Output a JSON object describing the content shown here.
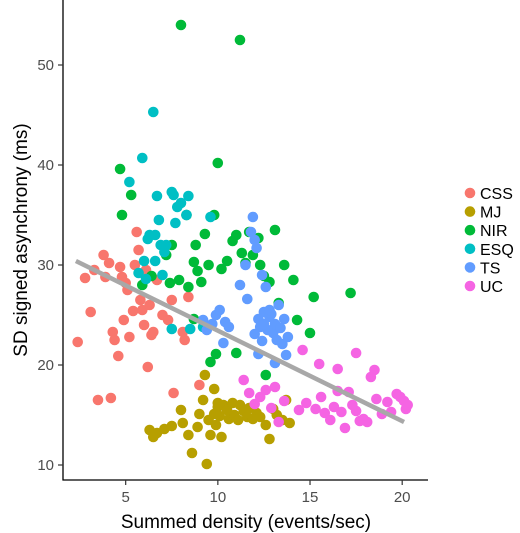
{
  "chart_data": {
    "type": "scatter",
    "xlabel": "Summed density (events/sec)",
    "ylabel": "SD signed asynchrony (ms)",
    "xlim": [
      1.6,
      21.4
    ],
    "ylim": [
      8.5,
      56.5
    ],
    "xticks": [
      5,
      10,
      15,
      20
    ],
    "yticks": [
      10,
      20,
      30,
      40,
      50
    ],
    "grid": false,
    "legend_position": "right",
    "trend_line": {
      "color": "#a8a8a8",
      "x": [
        2.3,
        20.1
      ],
      "y": [
        30.4,
        14.3
      ]
    },
    "series": [
      {
        "name": "CSS",
        "color": "#f8766d",
        "points": [
          [
            2.4,
            22.3
          ],
          [
            2.8,
            28.7
          ],
          [
            3.1,
            25.3
          ],
          [
            3.3,
            29.5
          ],
          [
            3.5,
            16.5
          ],
          [
            3.8,
            31.0
          ],
          [
            3.9,
            28.8
          ],
          [
            4.1,
            30.2
          ],
          [
            4.2,
            16.7
          ],
          [
            4.3,
            23.3
          ],
          [
            4.4,
            22.5
          ],
          [
            4.6,
            20.9
          ],
          [
            4.7,
            29.8
          ],
          [
            4.8,
            28.8
          ],
          [
            4.9,
            24.5
          ],
          [
            5.0,
            28.2
          ],
          [
            5.1,
            27.5
          ],
          [
            5.2,
            22.8
          ],
          [
            5.4,
            25.4
          ],
          [
            5.5,
            30.0
          ],
          [
            5.6,
            33.3
          ],
          [
            5.7,
            31.5
          ],
          [
            5.8,
            26.5
          ],
          [
            5.9,
            25.5
          ],
          [
            6.0,
            24.0
          ],
          [
            6.1,
            29.5
          ],
          [
            6.2,
            19.8
          ],
          [
            6.3,
            26.0
          ],
          [
            6.4,
            23.0
          ],
          [
            6.5,
            23.3
          ],
          [
            6.7,
            28.5
          ],
          [
            7.0,
            25.0
          ],
          [
            7.3,
            24.5
          ],
          [
            7.5,
            26.5
          ],
          [
            8.1,
            23.3
          ],
          [
            8.2,
            22.5
          ],
          [
            8.4,
            26.8
          ],
          [
            9.0,
            18.0
          ],
          [
            7.6,
            17.2
          ]
        ]
      },
      {
        "name": "MJ",
        "color": "#b79f00",
        "points": [
          [
            6.3,
            13.5
          ],
          [
            6.5,
            12.8
          ],
          [
            6.7,
            13.2
          ],
          [
            7.1,
            13.6
          ],
          [
            7.5,
            13.9
          ],
          [
            8.1,
            14.2
          ],
          [
            8.4,
            13.0
          ],
          [
            8.6,
            11.2
          ],
          [
            8.9,
            13.8
          ],
          [
            9.2,
            16.5
          ],
          [
            9.4,
            10.1
          ],
          [
            9.5,
            14.5
          ],
          [
            9.6,
            13.0
          ],
          [
            9.8,
            15.1
          ],
          [
            9.9,
            14.0
          ],
          [
            10.0,
            15.8
          ],
          [
            10.1,
            14.9
          ],
          [
            10.3,
            16.0
          ],
          [
            10.5,
            15.5
          ],
          [
            10.6,
            14.6
          ],
          [
            10.8,
            16.2
          ],
          [
            10.9,
            15.0
          ],
          [
            11.1,
            14.5
          ],
          [
            11.2,
            16.0
          ],
          [
            11.4,
            15.4
          ],
          [
            11.6,
            14.8
          ],
          [
            11.7,
            15.7
          ],
          [
            11.9,
            14.6
          ],
          [
            12.1,
            15.2
          ],
          [
            12.3,
            14.8
          ],
          [
            12.6,
            14.0
          ],
          [
            12.8,
            12.6
          ],
          [
            13.0,
            15.6
          ],
          [
            13.2,
            15.0
          ],
          [
            13.5,
            14.5
          ],
          [
            13.7,
            16.5
          ],
          [
            13.9,
            14.2
          ],
          [
            10.2,
            12.8
          ],
          [
            9.0,
            15.1
          ],
          [
            8.0,
            15.5
          ],
          [
            9.8,
            17.6
          ],
          [
            9.3,
            19.0
          ],
          [
            10.0,
            16.2
          ]
        ]
      },
      {
        "name": "NIR",
        "color": "#00ba38",
        "points": [
          [
            4.7,
            39.6
          ],
          [
            4.8,
            35.0
          ],
          [
            5.3,
            37.0
          ],
          [
            5.9,
            28.0
          ],
          [
            6.4,
            28.9
          ],
          [
            7.2,
            31.0
          ],
          [
            7.4,
            28.2
          ],
          [
            7.5,
            32.0
          ],
          [
            7.9,
            28.5
          ],
          [
            8.0,
            54.0
          ],
          [
            8.3,
            35.0
          ],
          [
            8.7,
            30.3
          ],
          [
            8.8,
            32.0
          ],
          [
            9.1,
            28.3
          ],
          [
            9.3,
            33.1
          ],
          [
            9.5,
            30.0
          ],
          [
            9.6,
            20.3
          ],
          [
            9.9,
            21.1
          ],
          [
            10.0,
            40.2
          ],
          [
            10.2,
            29.6
          ],
          [
            10.5,
            30.4
          ],
          [
            10.8,
            32.4
          ],
          [
            11.0,
            33.0
          ],
          [
            11.2,
            52.5
          ],
          [
            11.3,
            31.2
          ],
          [
            11.5,
            30.2
          ],
          [
            11.7,
            33.3
          ],
          [
            11.9,
            31.0
          ],
          [
            12.2,
            32.7
          ],
          [
            12.3,
            30.0
          ],
          [
            12.5,
            28.9
          ],
          [
            12.8,
            28.3
          ],
          [
            13.1,
            33.5
          ],
          [
            13.3,
            26.2
          ],
          [
            13.6,
            30.0
          ],
          [
            14.1,
            28.5
          ],
          [
            14.3,
            24.5
          ],
          [
            15.0,
            23.2
          ],
          [
            15.2,
            26.8
          ],
          [
            17.2,
            27.2
          ],
          [
            11.0,
            21.2
          ],
          [
            12.6,
            19.0
          ],
          [
            8.7,
            24.6
          ],
          [
            8.4,
            27.8
          ],
          [
            9.8,
            35.0
          ],
          [
            8.9,
            29.4
          ]
        ]
      },
      {
        "name": "ESQ",
        "color": "#00bfc4",
        "points": [
          [
            5.2,
            38.3
          ],
          [
            5.7,
            29.2
          ],
          [
            5.9,
            40.7
          ],
          [
            6.1,
            28.6
          ],
          [
            6.2,
            32.6
          ],
          [
            6.3,
            33.0
          ],
          [
            6.5,
            45.3
          ],
          [
            6.6,
            30.4
          ],
          [
            6.7,
            36.9
          ],
          [
            6.8,
            34.5
          ],
          [
            6.9,
            32.0
          ],
          [
            7.0,
            29.0
          ],
          [
            7.1,
            31.3
          ],
          [
            7.5,
            37.3
          ],
          [
            7.6,
            37.0
          ],
          [
            7.7,
            34.2
          ],
          [
            7.8,
            35.8
          ],
          [
            8.0,
            36.2
          ],
          [
            8.3,
            35.0
          ],
          [
            8.4,
            36.9
          ],
          [
            8.5,
            23.6
          ],
          [
            9.2,
            23.8
          ],
          [
            9.6,
            34.8
          ],
          [
            7.5,
            23.6
          ],
          [
            6.6,
            33.0
          ],
          [
            7.2,
            32.0
          ],
          [
            6.0,
            30.4
          ]
        ]
      },
      {
        "name": "TS",
        "color": "#619cff",
        "points": [
          [
            9.2,
            24.5
          ],
          [
            9.4,
            23.5
          ],
          [
            9.7,
            24.1
          ],
          [
            9.9,
            25.0
          ],
          [
            10.1,
            25.5
          ],
          [
            10.4,
            24.3
          ],
          [
            10.6,
            23.8
          ],
          [
            11.2,
            28.0
          ],
          [
            11.5,
            30.0
          ],
          [
            11.6,
            26.6
          ],
          [
            11.8,
            33.3
          ],
          [
            11.9,
            34.8
          ],
          [
            12.0,
            32.5
          ],
          [
            12.1,
            31.7
          ],
          [
            12.2,
            24.6
          ],
          [
            12.3,
            23.8
          ],
          [
            12.4,
            29.0
          ],
          [
            12.5,
            25.3
          ],
          [
            12.6,
            27.8
          ],
          [
            12.7,
            23.5
          ],
          [
            12.8,
            24.8
          ],
          [
            12.9,
            25.1
          ],
          [
            13.0,
            23.2
          ],
          [
            13.1,
            24.1
          ],
          [
            13.2,
            22.5
          ],
          [
            13.3,
            26.0
          ],
          [
            13.4,
            23.7
          ],
          [
            13.5,
            22.1
          ],
          [
            13.6,
            24.6
          ],
          [
            13.7,
            21.0
          ],
          [
            13.8,
            22.8
          ],
          [
            12.0,
            23.1
          ],
          [
            12.4,
            22.4
          ],
          [
            12.2,
            21.1
          ],
          [
            13.1,
            20.2
          ],
          [
            12.8,
            25.5
          ],
          [
            10.3,
            22.2
          ],
          [
            12.5,
            24.1
          ]
        ]
      },
      {
        "name": "UC",
        "color": "#f564e3",
        "points": [
          [
            11.4,
            18.5
          ],
          [
            11.7,
            17.2
          ],
          [
            12.0,
            16.1
          ],
          [
            12.3,
            16.8
          ],
          [
            12.6,
            17.5
          ],
          [
            12.9,
            15.7
          ],
          [
            13.1,
            17.8
          ],
          [
            13.3,
            14.3
          ],
          [
            13.6,
            16.4
          ],
          [
            14.4,
            15.5
          ],
          [
            14.8,
            16.2
          ],
          [
            15.3,
            15.6
          ],
          [
            15.6,
            16.8
          ],
          [
            15.8,
            15.2
          ],
          [
            16.1,
            14.5
          ],
          [
            16.3,
            15.8
          ],
          [
            16.5,
            17.4
          ],
          [
            16.7,
            15.3
          ],
          [
            16.9,
            13.7
          ],
          [
            17.1,
            17.3
          ],
          [
            17.3,
            16.0
          ],
          [
            17.5,
            15.4
          ],
          [
            17.7,
            14.4
          ],
          [
            17.9,
            14.6
          ],
          [
            18.1,
            14.3
          ],
          [
            18.3,
            18.8
          ],
          [
            18.6,
            16.6
          ],
          [
            18.9,
            15.1
          ],
          [
            19.2,
            16.3
          ],
          [
            19.4,
            15.3
          ],
          [
            19.7,
            17.1
          ],
          [
            19.9,
            16.8
          ],
          [
            20.1,
            16.4
          ],
          [
            20.2,
            15.6
          ],
          [
            20.3,
            16.0
          ],
          [
            16.5,
            19.6
          ],
          [
            15.5,
            20.1
          ],
          [
            14.6,
            21.5
          ],
          [
            18.5,
            19.5
          ],
          [
            17.5,
            21.2
          ]
        ]
      }
    ]
  }
}
